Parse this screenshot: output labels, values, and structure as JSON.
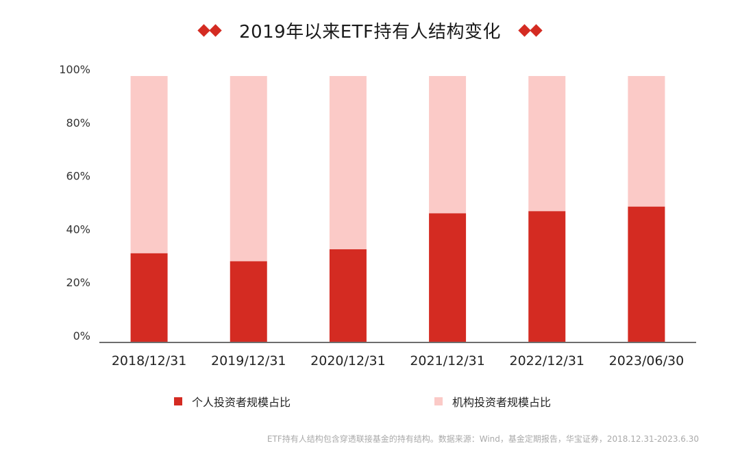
{
  "header": {
    "title": "2019年以来ETF持有人结构变化",
    "left_ornament": "diamond-pair-icon",
    "right_ornament": "diamond-pair-icon"
  },
  "colors": {
    "individual": "#d42b22",
    "institutional": "#fbcac7",
    "axis": "#6d6d6d",
    "accent": "#d42b22"
  },
  "chart_data": {
    "type": "bar",
    "stacked": true,
    "percent": true,
    "categories": [
      "2018/12/31",
      "2019/12/31",
      "2020/12/31",
      "2021/12/31",
      "2022/12/31",
      "2023/06/30"
    ],
    "series": [
      {
        "name": "个人投资者规模占比",
        "values": [
          33.5,
          30.5,
          35,
          48.5,
          49.3,
          51
        ]
      },
      {
        "name": "机构投资者规模占比",
        "values": [
          66.5,
          69.5,
          65,
          51.5,
          50.7,
          49
        ]
      }
    ],
    "y_ticks": [
      "0%",
      "20%",
      "40%",
      "60%",
      "80%",
      "100%"
    ],
    "ylim": [
      0,
      100
    ],
    "grid": false,
    "legend_position": "bottom"
  },
  "legend": {
    "items": [
      {
        "label": "个人投资者规模占比",
        "color": "#d42b22"
      },
      {
        "label": "机构投资者规模占比",
        "color": "#fbcac7"
      }
    ]
  },
  "footer": {
    "note": "ETF持有人结构包含穿透联接基金的持有结构。数据来源：Wind，基金定期报告，华宝证券，2018.12.31-2023.6.30"
  }
}
